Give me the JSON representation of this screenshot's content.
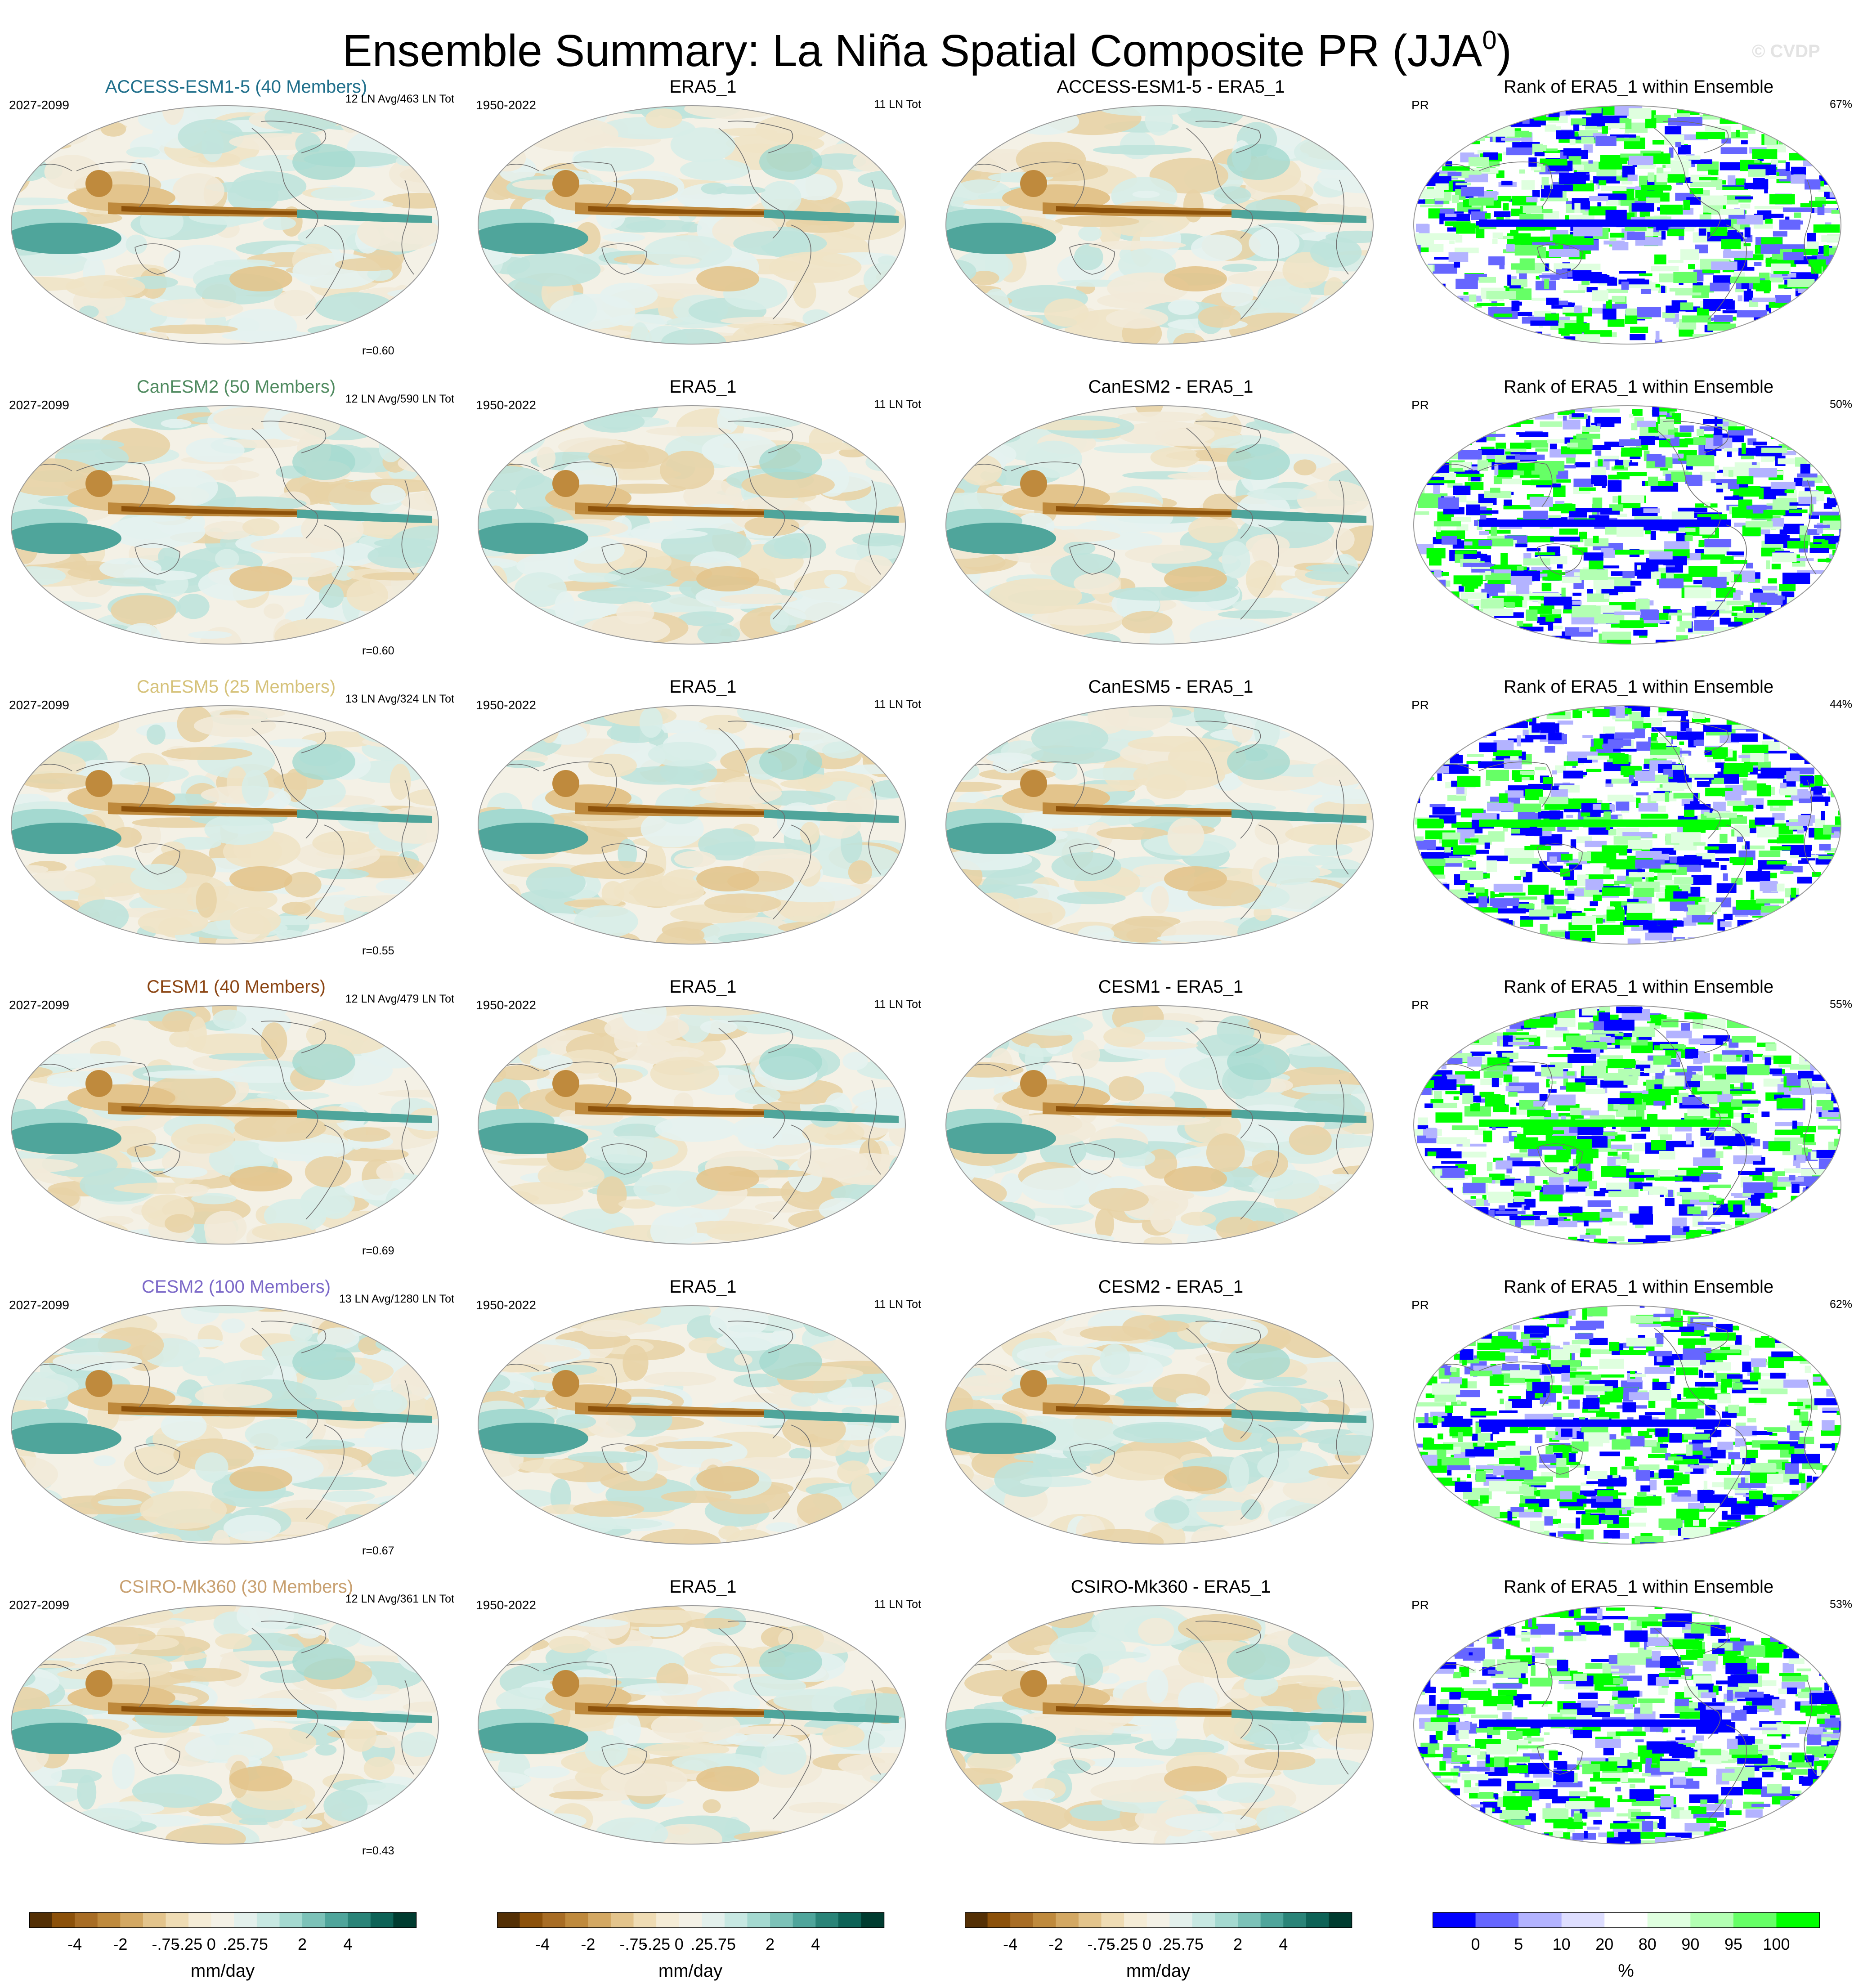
{
  "title": {
    "main": "Ensemble Summary: La Niña Spatial Composite PR (JJA",
    "sup": "0",
    "close": ")"
  },
  "watermark": "© CVDP",
  "rows": [
    {
      "model": "ACCESS-ESM1-5 (40 Members)",
      "model_color": "#1f6f8b",
      "period": "2027-2099",
      "stat": "12 LN Avg/463 LN Tot",
      "r": "r=0.60",
      "diff": "ACCESS-ESM1-5 - ERA5_1",
      "rank_pct": "67%"
    },
    {
      "model": "CanESM2 (50 Members)",
      "model_color": "#4f8a5f",
      "period": "2027-2099",
      "stat": "12 LN Avg/590 LN Tot",
      "r": "r=0.60",
      "diff": "CanESM2 - ERA5_1",
      "rank_pct": "50%"
    },
    {
      "model": "CanESM5 (25 Members)",
      "model_color": "#d6c27a",
      "period": "2027-2099",
      "stat": "13 LN Avg/324 LN Tot",
      "r": "r=0.55",
      "diff": "CanESM5 - ERA5_1",
      "rank_pct": "44%"
    },
    {
      "model": "CESM1 (40 Members)",
      "model_color": "#8b4513",
      "period": "2027-2099",
      "stat": "12 LN Avg/479 LN Tot",
      "r": "r=0.69",
      "diff": "CESM1 - ERA5_1",
      "rank_pct": "55%"
    },
    {
      "model": "CESM2 (100 Members)",
      "model_color": "#7b68c8",
      "period": "2027-2099",
      "stat": "13 LN Avg/1280 LN Tot",
      "r": "r=0.67",
      "diff": "CESM2 - ERA5_1",
      "rank_pct": "62%"
    },
    {
      "model": "CSIRO-Mk360 (30 Members)",
      "model_color": "#c8a070",
      "period": "2027-2099",
      "stat": "12 LN Avg/361 LN Tot",
      "r": "r=0.43",
      "diff": "CSIRO-Mk360 - ERA5_1",
      "rank_pct": "53%"
    }
  ],
  "obs": {
    "title": "ERA5_1",
    "period": "1950-2022",
    "stat": "11 LN Tot"
  },
  "rank": {
    "title": "Rank of ERA5_1 within Ensemble",
    "var": "PR"
  },
  "colorbars": {
    "precip": {
      "colors": [
        "#543005",
        "#8c510a",
        "#a86d25",
        "#bf8a3d",
        "#d3a863",
        "#e3c48c",
        "#efdcb4",
        "#f5ecd6",
        "#f4f1e6",
        "#e3f0ec",
        "#c7e8e2",
        "#a4d9d0",
        "#7cc2b8",
        "#4fa59b",
        "#2a8478",
        "#0e6357",
        "#003c30"
      ],
      "labels": [
        "-4",
        "-2",
        "-.75",
        "-.25",
        "0",
        ".25",
        ".75",
        "2",
        "4"
      ],
      "label_index": [
        2,
        4,
        6,
        7,
        8,
        9,
        10,
        12,
        14
      ],
      "units": "mm/day"
    },
    "rank": {
      "colors": [
        "#0000ff",
        "#6666ff",
        "#b3b3ff",
        "#dedeff",
        "#ffffff",
        "#dfffdf",
        "#b3ffb3",
        "#66ff66",
        "#00ff00"
      ],
      "labels": [
        "0",
        "5",
        "10",
        "20",
        "80",
        "90",
        "95",
        "100"
      ],
      "label_index": [
        1,
        2,
        3,
        4,
        5,
        6,
        7,
        8
      ],
      "units": "%"
    }
  },
  "chart_data": {
    "type": "heatmap",
    "title": "Ensemble Summary: La Niña Spatial Composite PR (JJA0)",
    "variable": "PR",
    "season": "JJA",
    "units": "mm/day",
    "precip_levels": [
      "-4",
      "-2",
      "-.75",
      "-.25",
      "0",
      ".25",
      ".75",
      "2",
      "4"
    ],
    "rank_levels_percent": [
      0,
      5,
      10,
      20,
      80,
      90,
      95,
      100
    ],
    "panels_per_row": [
      "model ensemble mean",
      "ERA5_1 observed",
      "model - ERA5_1 difference",
      "rank of ERA5_1 within ensemble"
    ],
    "pattern_correlation": [
      {
        "model": "ACCESS-ESM1-5",
        "r": 0.6,
        "rank_percent": 67
      },
      {
        "model": "CanESM2",
        "r": 0.6,
        "rank_percent": 50
      },
      {
        "model": "CanESM5",
        "r": 0.55,
        "rank_percent": 44
      },
      {
        "model": "CESM1",
        "r": 0.69,
        "rank_percent": 55
      },
      {
        "model": "CESM2",
        "r": 0.67,
        "rank_percent": 62
      },
      {
        "model": "CSIRO-Mk360",
        "r": 0.43,
        "rank_percent": 53
      }
    ]
  }
}
